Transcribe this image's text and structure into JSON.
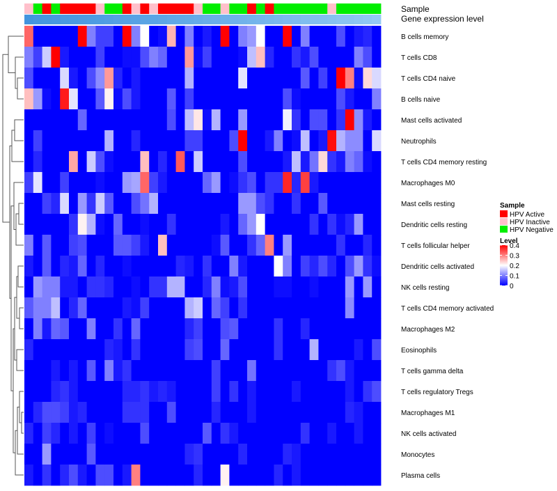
{
  "chart_data": {
    "type": "heatmap",
    "annotation_labels": {
      "sample": "Sample",
      "gene_expression": "Gene expression level"
    },
    "sample_groups": [
      "I",
      "N",
      "A",
      "N",
      "A",
      "A",
      "A",
      "A",
      "I",
      "N",
      "N",
      "A",
      "I",
      "A",
      "I",
      "A",
      "A",
      "A",
      "A",
      "I",
      "N",
      "N",
      "I",
      "N",
      "N",
      "A",
      "N",
      "A",
      "N",
      "N",
      "N",
      "N",
      "N",
      "N",
      "I",
      "N",
      "N",
      "N",
      "N",
      "N"
    ],
    "gene_expression_levels": [
      0.06,
      0.08,
      0.09,
      0.1,
      0.12,
      0.13,
      0.14,
      0.15,
      0.16,
      0.18,
      0.2,
      0.21,
      0.22,
      0.24,
      0.25,
      0.27,
      0.29,
      0.3,
      0.31,
      0.33,
      0.35,
      0.36,
      0.38,
      0.4,
      0.41,
      0.43,
      0.44,
      0.46,
      0.48,
      0.5,
      0.51,
      0.53,
      0.55,
      0.56,
      0.58,
      0.6,
      0.61,
      0.63,
      0.65,
      0.68
    ],
    "rows": [
      "B cells memory",
      "T cells CD8",
      "T cells CD4 naive",
      "B cells naive",
      "Mast cells activated",
      "Neutrophils",
      "T cells CD4 memory resting",
      "Macrophages M0",
      "Mast cells resting",
      "Dendritic cells resting",
      "T cells follicular helper",
      "Dendritic cells activated",
      "NK cells resting",
      "T cells CD4 memory activated",
      "Macrophages M2",
      "Eosinophils",
      "T cells gamma delta",
      "T cells regulatory  Tregs",
      "Macrophages M1",
      "NK cells activated",
      "Monocytes",
      "Plasma cells"
    ],
    "values": [
      [
        0.32,
        0,
        0,
        0,
        0,
        0,
        0.4,
        0.1,
        0.05,
        0.05,
        0,
        0.4,
        0.1,
        0.2,
        0,
        0.01,
        0.26,
        0,
        0.1,
        0,
        0.02,
        0,
        0.4,
        0,
        0.1,
        0.12,
        0.2,
        0,
        0,
        0.4,
        0,
        0.1,
        0,
        0,
        0,
        0.06,
        0,
        0.02,
        0.03,
        0
      ],
      [
        0.1,
        0.05,
        0.16,
        0.4,
        0.02,
        0,
        0,
        0,
        0.05,
        0,
        0,
        0.01,
        0.01,
        0.06,
        0.1,
        0.08,
        0,
        0,
        0.28,
        0.01,
        0.05,
        0,
        0,
        0,
        0.01,
        0.15,
        0.25,
        0.03,
        0,
        0,
        0.04,
        0.02,
        0.06,
        0,
        0,
        0,
        0,
        0.1,
        0.06,
        0
      ],
      [
        0.06,
        0,
        0,
        0,
        0.17,
        0.02,
        0,
        0.06,
        0.11,
        0.28,
        0.03,
        0,
        0.02,
        0,
        0,
        0,
        0,
        0,
        0.14,
        0,
        0,
        0,
        0,
        0,
        0.18,
        0,
        0,
        0,
        0,
        0,
        0,
        0.07,
        0,
        0.05,
        0,
        0.4,
        0.3,
        0.01,
        0.23,
        0.17
      ],
      [
        0.25,
        0.12,
        0.01,
        0,
        0.38,
        0.18,
        0,
        0,
        0.07,
        0.21,
        0.01,
        0.06,
        0.02,
        0,
        0,
        0,
        0.07,
        0,
        0.05,
        0,
        0,
        0,
        0,
        0,
        0,
        0,
        0,
        0,
        0,
        0.06,
        0.01,
        0,
        0,
        0,
        0,
        0.06,
        0.02,
        0,
        0,
        0.1
      ],
      [
        0,
        0,
        0,
        0,
        0,
        0,
        0.08,
        0,
        0,
        0,
        0,
        0,
        0,
        0,
        0,
        0,
        0.06,
        0,
        0.15,
        0.22,
        0.01,
        0.14,
        0,
        0,
        0.12,
        0,
        0,
        0,
        0,
        0.19,
        0.04,
        0,
        0.06,
        0.06,
        0,
        0.04,
        0.4,
        0.11,
        0.02,
        0
      ],
      [
        0,
        0.05,
        0,
        0,
        0,
        0,
        0,
        0,
        0,
        0.14,
        0,
        0,
        0.03,
        0,
        0,
        0,
        0,
        0,
        0.05,
        0.05,
        0,
        0,
        0,
        0.06,
        0.4,
        0,
        0,
        0.02,
        0.1,
        0,
        0.01,
        0.15,
        0,
        0.02,
        0.39,
        0.14,
        0.11,
        0.11,
        0,
        0.17
      ],
      [
        0,
        0.03,
        0,
        0,
        0,
        0.27,
        0,
        0.16,
        0.06,
        0.01,
        0,
        0,
        0,
        0.25,
        0,
        0.03,
        0,
        0.33,
        0,
        0.16,
        0,
        0,
        0,
        0,
        0.06,
        0,
        0,
        0,
        0,
        0.02,
        0.15,
        0.02,
        0.09,
        0.23,
        0.04,
        0.02,
        0.1,
        0.08,
        0.01,
        0
      ],
      [
        0.05,
        0.18,
        0,
        0,
        0.05,
        0,
        0,
        0,
        0.01,
        0,
        0,
        0.12,
        0.13,
        0.32,
        0.05,
        0.02,
        0,
        0,
        0,
        0,
        0.08,
        0.12,
        0,
        0.01,
        0.04,
        0.06,
        0,
        0.04,
        0.04,
        0.37,
        0.03,
        0.35,
        0.02,
        0,
        0,
        0,
        0,
        0,
        0,
        0
      ],
      [
        0,
        0,
        0.05,
        0.03,
        0.17,
        0,
        0.12,
        0.04,
        0.16,
        0.07,
        0,
        0,
        0.06,
        0.09,
        0.14,
        0,
        0,
        0,
        0,
        0,
        0,
        0,
        0,
        0,
        0.12,
        0.12,
        0.06,
        0.04,
        0,
        0,
        0.04,
        0,
        0,
        0.07,
        0,
        0,
        0,
        0,
        0,
        0
      ],
      [
        0,
        0,
        0,
        0,
        0,
        0.04,
        0.21,
        0.14,
        0.01,
        0,
        0.08,
        0,
        0,
        0.01,
        0,
        0,
        0.04,
        0,
        0,
        0,
        0,
        0,
        0.02,
        0,
        0.08,
        0.12,
        0.2,
        0,
        0,
        0,
        0,
        0,
        0.04,
        0,
        0.04,
        0.01,
        0.03,
        0.12,
        0,
        0
      ],
      [
        0.1,
        0,
        0.07,
        0,
        0,
        0.05,
        0.06,
        0,
        0,
        0,
        0.07,
        0.07,
        0.05,
        0.02,
        0,
        0.25,
        0,
        0,
        0,
        0,
        0,
        0.01,
        0.07,
        0,
        0,
        0.04,
        0.08,
        0.3,
        0,
        0.12,
        0,
        0,
        0,
        0,
        0,
        0.04,
        0,
        0,
        0.03,
        0
      ],
      [
        0.02,
        0,
        0.07,
        0,
        0.03,
        0.02,
        0.08,
        0,
        0.03,
        0,
        0,
        0.01,
        0,
        0,
        0,
        0,
        0,
        0.03,
        0.02,
        0,
        0.04,
        0,
        0,
        0.1,
        0.02,
        0,
        0,
        0,
        0.2,
        0.1,
        0,
        0.05,
        0.03,
        0.06,
        0.03,
        0,
        0.06,
        0.12,
        0.04,
        0.01
      ],
      [
        0,
        0.12,
        0.1,
        0.1,
        0.02,
        0.02,
        0,
        0.04,
        0.04,
        0.03,
        0,
        0,
        0.01,
        0,
        0.04,
        0.04,
        0.14,
        0.14,
        0,
        0,
        0.03,
        0.1,
        0.01,
        0.02,
        0.06,
        0,
        0,
        0,
        0.01,
        0.01,
        0,
        0,
        0.01,
        0,
        0,
        0,
        0.12,
        0,
        0.12,
        0
      ],
      [
        0.07,
        0.1,
        0.1,
        0.15,
        0,
        0.03,
        0.08,
        0,
        0,
        0,
        0,
        0.02,
        0.01,
        0.05,
        0,
        0,
        0,
        0,
        0.14,
        0.16,
        0,
        0.08,
        0.05,
        0,
        0.04,
        0,
        0,
        0,
        0,
        0,
        0,
        0,
        0,
        0,
        0,
        0,
        0.11,
        0,
        0,
        0
      ],
      [
        0,
        0.1,
        0.02,
        0.08,
        0.07,
        0,
        0,
        0.1,
        0,
        0,
        0.04,
        0,
        0.08,
        0,
        0,
        0,
        0,
        0,
        0.03,
        0.05,
        0,
        0,
        0.06,
        0.07,
        0,
        0,
        0,
        0,
        0.04,
        0,
        0,
        0.03,
        0,
        0,
        0,
        0,
        0,
        0,
        0,
        0
      ],
      [
        0.03,
        0,
        0,
        0,
        0,
        0,
        0,
        0,
        0,
        0.03,
        0.02,
        0,
        0.04,
        0,
        0,
        0,
        0,
        0,
        0.05,
        0.06,
        0,
        0,
        0.08,
        0,
        0,
        0,
        0,
        0,
        0.04,
        0,
        0,
        0,
        0.14,
        0,
        0,
        0,
        0,
        0.02,
        0,
        0.06
      ],
      [
        0,
        0,
        0,
        0.02,
        0,
        0.02,
        0,
        0.07,
        0,
        0.1,
        0.02,
        0.04,
        0,
        0,
        0,
        0,
        0,
        0,
        0,
        0,
        0,
        0.05,
        0,
        0,
        0,
        0.09,
        0,
        0,
        0,
        0,
        0,
        0,
        0,
        0,
        0.04,
        0.06,
        0.02,
        0,
        0,
        0
      ],
      [
        0,
        0,
        0,
        0.03,
        0.04,
        0.02,
        0,
        0,
        0,
        0,
        0,
        0.03,
        0.03,
        0.04,
        0.02,
        0.03,
        0.02,
        0,
        0,
        0,
        0,
        0.05,
        0,
        0.04,
        0,
        0.02,
        0,
        0,
        0,
        0,
        0.02,
        0,
        0,
        0,
        0,
        0,
        0.02,
        0,
        0.04,
        0.06
      ],
      [
        0,
        0.03,
        0.06,
        0.06,
        0.05,
        0.02,
        0.03,
        0,
        0,
        0,
        0,
        0.04,
        0.04,
        0.04,
        0,
        0,
        0.06,
        0,
        0,
        0,
        0,
        0.03,
        0,
        0,
        0,
        0.02,
        0,
        0,
        0,
        0,
        0,
        0,
        0,
        0,
        0,
        0,
        0.03,
        0.02,
        0,
        0
      ],
      [
        0.03,
        0,
        0.05,
        0.03,
        0,
        0.02,
        0,
        0.05,
        0,
        0.01,
        0,
        0,
        0,
        0.06,
        0,
        0,
        0,
        0,
        0,
        0,
        0.07,
        0,
        0.04,
        0.02,
        0,
        0,
        0,
        0,
        0,
        0,
        0,
        0.04,
        0,
        0,
        0.02,
        0,
        0,
        0.02,
        0,
        0
      ],
      [
        0,
        0,
        0.12,
        0,
        0,
        0,
        0,
        0.07,
        0,
        0,
        0,
        0,
        0,
        0,
        0,
        0,
        0,
        0,
        0.03,
        0.04,
        0,
        0,
        0,
        0,
        0.03,
        0,
        0,
        0,
        0,
        0.03,
        0.02,
        0,
        0,
        0,
        0,
        0,
        0,
        0,
        0,
        0
      ],
      [
        0.02,
        0,
        0.04,
        0,
        0.03,
        0.06,
        0.02,
        0,
        0.06,
        0.06,
        0,
        0.02,
        0.3,
        0,
        0,
        0,
        0,
        0,
        0,
        0.03,
        0,
        0,
        0.21,
        0,
        0,
        0,
        0,
        0,
        0.03,
        0,
        0.02,
        0,
        0,
        0,
        0,
        0,
        0,
        0,
        0,
        0
      ]
    ],
    "legend": {
      "sample_title": "Sample",
      "sample_entries": [
        {
          "key": "A",
          "label": "HPV Active",
          "color": "#ff0000"
        },
        {
          "key": "I",
          "label": "HPV Inactive",
          "color": "#ffc0cb"
        },
        {
          "key": "N",
          "label": "HPV Negative",
          "color": "#00ee00"
        }
      ],
      "level_title": "Level",
      "level_ticks": [
        0.4,
        0.3,
        0.2,
        0.1,
        0
      ],
      "level_range": [
        0,
        0.4
      ],
      "placement": "right"
    },
    "color_scale": {
      "low": "#0000ff",
      "mid": "#ffffff",
      "high": "#ff0000",
      "midpoint": 0.2
    },
    "gene_expression_scale": {
      "low": "#3a8fdc",
      "high": "#bfe5ff"
    },
    "dendrogram": "rows"
  }
}
